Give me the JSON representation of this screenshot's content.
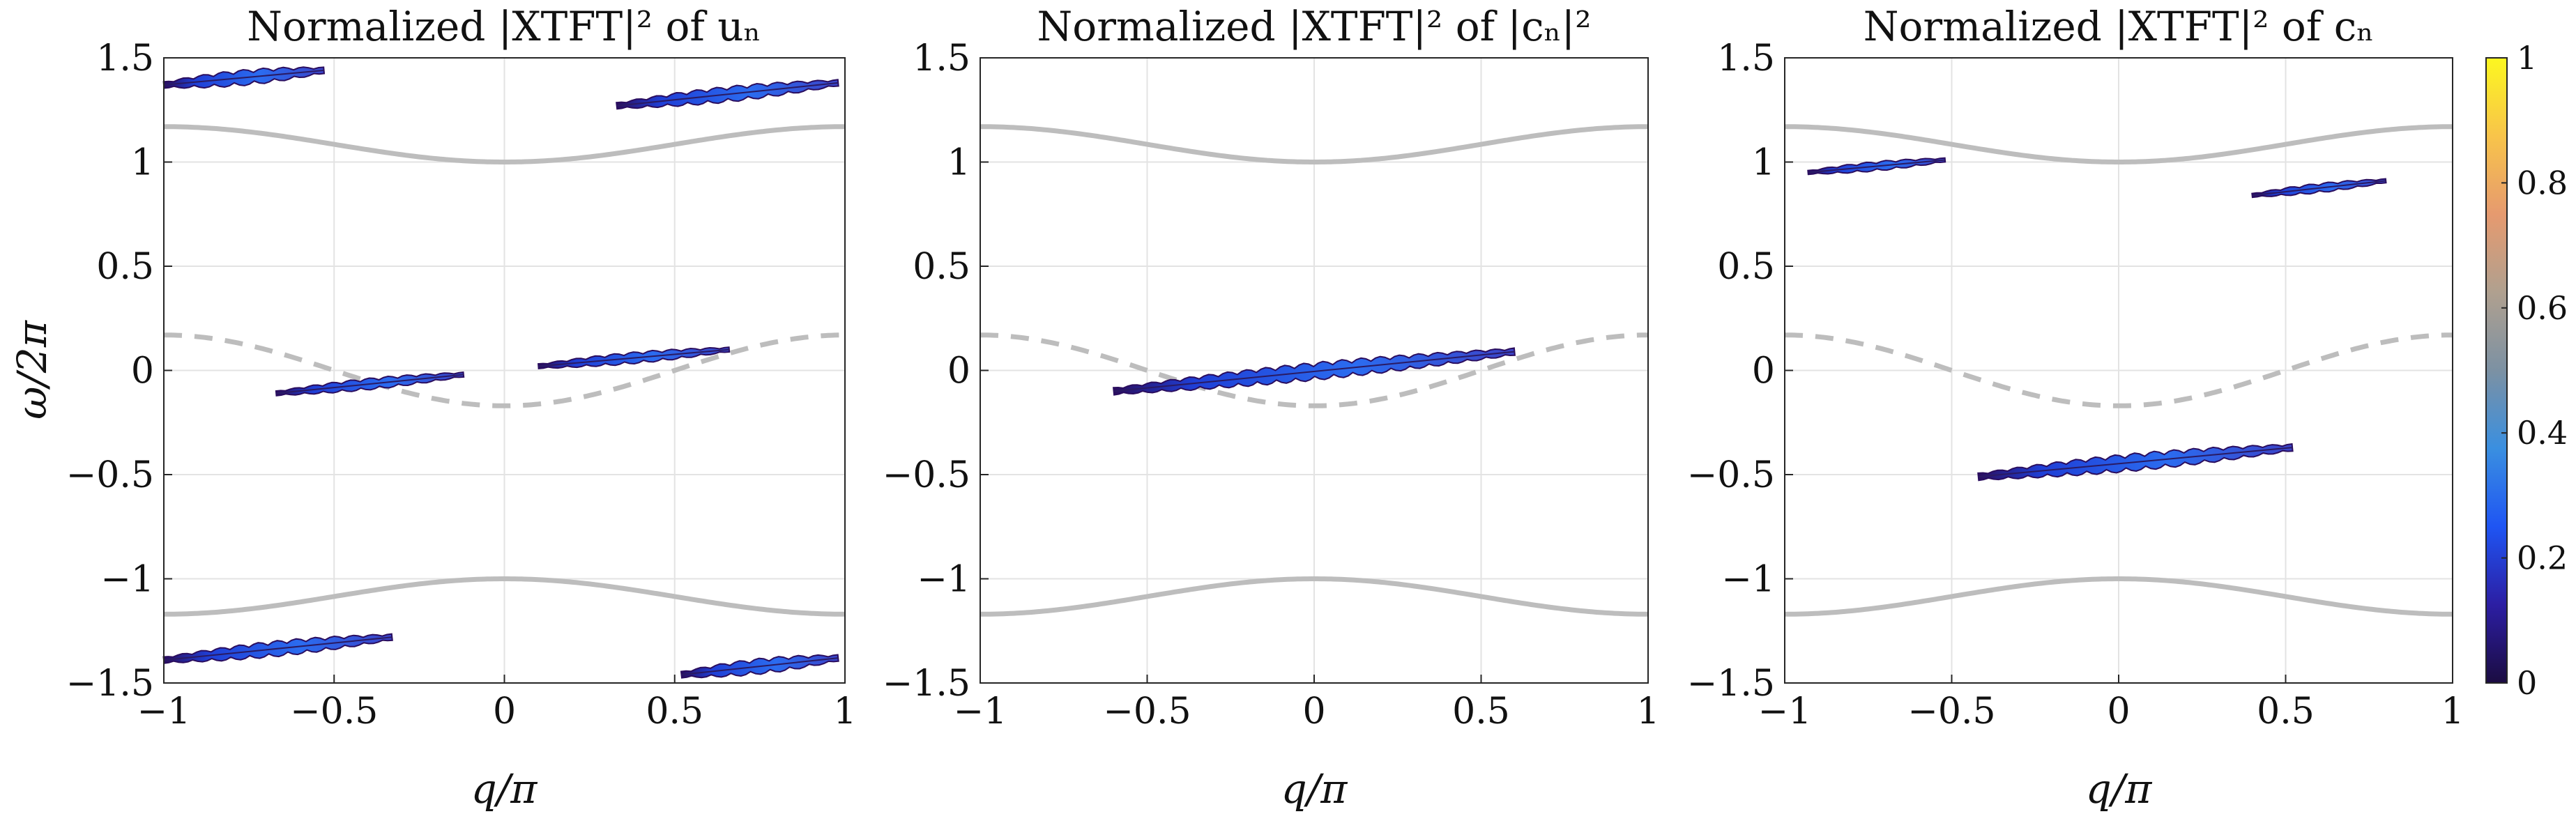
{
  "chart_data": [
    {
      "type": "heatmap",
      "title": "Normalized |XTFT|² of uₙ",
      "xlabel": "q/π",
      "ylabel": "ω/2π",
      "xlim": [
        -1,
        1
      ],
      "ylim": [
        -1.5,
        1.5
      ],
      "xticks": [
        "−1",
        "−0.5",
        "0",
        "0.5",
        "1"
      ],
      "yticks": [
        "−1.5",
        "−1",
        "−0.5",
        "0",
        "0.5",
        "1",
        "1.5"
      ],
      "grid": true,
      "curves": [
        {
          "name": "upper band",
          "style": "solid",
          "color": "#bdbdbd",
          "center": 1.0,
          "edge": 1.17
        },
        {
          "name": "lower band",
          "style": "solid",
          "color": "#bdbdbd",
          "center": -1.0,
          "edge": -1.17
        },
        {
          "name": "middle band",
          "style": "dashed",
          "color": "#bdbdbd",
          "center": -0.17,
          "edge": 0.17
        }
      ],
      "streaks": [
        {
          "q0": -1.0,
          "w0": 1.37,
          "q1": -0.53,
          "w1": 1.44,
          "peak": 0.25
        },
        {
          "q0": 0.33,
          "w0": 1.27,
          "q1": 0.98,
          "w1": 1.38,
          "peak": 0.25
        },
        {
          "q0": -0.67,
          "w0": -0.11,
          "q1": -0.12,
          "w1": -0.02,
          "peak": 0.15
        },
        {
          "q0": 0.1,
          "w0": 0.02,
          "q1": 0.66,
          "w1": 0.1,
          "peak": 0.15
        },
        {
          "q0": -1.0,
          "w0": -1.39,
          "q1": -0.33,
          "w1": -1.28,
          "peak": 0.25
        },
        {
          "q0": 0.52,
          "w0": -1.46,
          "q1": 0.98,
          "w1": -1.38,
          "peak": 0.25
        }
      ]
    },
    {
      "type": "heatmap",
      "title": "Normalized |XTFT|² of |cₙ|²",
      "xlabel": "q/π",
      "ylabel": "",
      "xlim": [
        -1,
        1
      ],
      "ylim": [
        -1.5,
        1.5
      ],
      "xticks": [
        "−1",
        "−0.5",
        "0",
        "0.5",
        "1"
      ],
      "yticks": [
        "−1.5",
        "−1",
        "−0.5",
        "0",
        "0.5",
        "1",
        "1.5"
      ],
      "grid": true,
      "curves": [
        {
          "name": "upper band",
          "style": "solid",
          "color": "#bdbdbd",
          "center": 1.0,
          "edge": 1.17
        },
        {
          "name": "lower band",
          "style": "solid",
          "color": "#bdbdbd",
          "center": -1.0,
          "edge": -1.17
        },
        {
          "name": "middle band",
          "style": "dashed",
          "color": "#bdbdbd",
          "center": -0.17,
          "edge": 0.17
        }
      ],
      "streaks": [
        {
          "q0": -0.6,
          "w0": -0.1,
          "q1": 0.6,
          "w1": 0.09,
          "peak": 0.3
        }
      ]
    },
    {
      "type": "heatmap",
      "title": "Normalized |XTFT|² of cₙ",
      "xlabel": "q/π",
      "ylabel": "",
      "xlim": [
        -1,
        1
      ],
      "ylim": [
        -1.5,
        1.5
      ],
      "xticks": [
        "−1",
        "−0.5",
        "0",
        "0.5",
        "1"
      ],
      "yticks": [
        "−1.5",
        "−1",
        "−0.5",
        "0",
        "0.5",
        "1",
        "1.5"
      ],
      "grid": true,
      "curves": [
        {
          "name": "upper band",
          "style": "solid",
          "color": "#bdbdbd",
          "center": 1.0,
          "edge": 1.17
        },
        {
          "name": "lower band",
          "style": "solid",
          "color": "#bdbdbd",
          "center": -1.0,
          "edge": -1.17
        },
        {
          "name": "middle band",
          "style": "dashed",
          "color": "#bdbdbd",
          "center": -0.17,
          "edge": 0.17
        }
      ],
      "streaks": [
        {
          "q0": -0.93,
          "w0": 0.95,
          "q1": -0.52,
          "w1": 1.01,
          "peak": 0.1
        },
        {
          "q0": 0.4,
          "w0": 0.84,
          "q1": 0.8,
          "w1": 0.91,
          "peak": 0.1
        },
        {
          "q0": -0.42,
          "w0": -0.51,
          "q1": 0.52,
          "w1": -0.37,
          "peak": 0.3
        }
      ]
    }
  ],
  "colorbar": {
    "ticks": [
      "0",
      "0.2",
      "0.4",
      "0.6",
      "0.8",
      "1"
    ],
    "stops": [
      "#1b0c41",
      "#2c1ea3",
      "#1f55f3",
      "#3a8fe0",
      "#7c91a3",
      "#b0a08f",
      "#e69a6f",
      "#f8c44a",
      "#fcf720"
    ]
  }
}
